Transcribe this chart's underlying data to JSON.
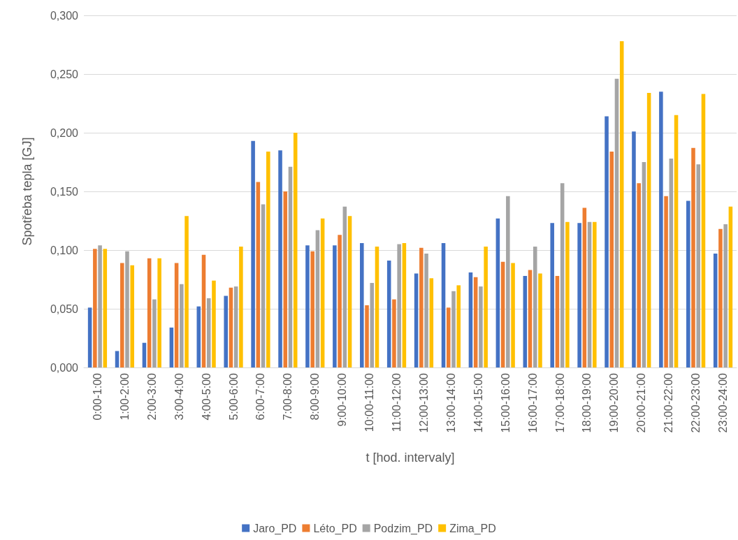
{
  "chart_data": {
    "type": "bar",
    "xlabel": "t [hod. intervaly]",
    "ylabel": "Spotřeba tepla [GJ]",
    "categories": [
      "0:00-1:00",
      "1:00-2:00",
      "2:00-3:00",
      "3:00-4:00",
      "4:00-5:00",
      "5:00-6:00",
      "6:00-7:00",
      "7:00-8:00",
      "8:00-9:00",
      "9:00-10:00",
      "10:00-11:00",
      "11:00-12:00",
      "12:00-13:00",
      "13:00-14:00",
      "14:00-15:00",
      "15:00-16:00",
      "16:00-17:00",
      "17:00-18:00",
      "18:00-19:00",
      "19:00-20:00",
      "20:00-21:00",
      "21:00-22:00",
      "22:00-23:00",
      "23:00-24:00"
    ],
    "series": [
      {
        "name": "Jaro_PD",
        "color": "#4472c4",
        "values": [
          0.051,
          0.014,
          0.021,
          0.034,
          0.052,
          0.061,
          0.193,
          0.185,
          0.104,
          0.104,
          0.106,
          0.091,
          0.08,
          0.106,
          0.081,
          0.127,
          0.078,
          0.123,
          0.123,
          0.214,
          0.201,
          0.235,
          0.142,
          0.097
        ]
      },
      {
        "name": "Léto_PD",
        "color": "#ed7d31",
        "values": [
          0.101,
          0.089,
          0.093,
          0.089,
          0.096,
          0.068,
          0.158,
          0.15,
          0.099,
          0.113,
          0.053,
          0.058,
          0.102,
          0.051,
          0.077,
          0.09,
          0.083,
          0.078,
          0.136,
          0.184,
          0.157,
          0.146,
          0.187,
          0.118
        ]
      },
      {
        "name": "Podzim_PD",
        "color": "#a5a5a5",
        "values": [
          0.104,
          0.099,
          0.058,
          0.071,
          0.059,
          0.069,
          0.139,
          0.171,
          0.117,
          0.137,
          0.072,
          0.105,
          0.097,
          0.065,
          0.069,
          0.146,
          0.103,
          0.157,
          0.124,
          0.246,
          0.175,
          0.178,
          0.173,
          0.122
        ]
      },
      {
        "name": "Zima_PD",
        "color": "#ffc000",
        "values": [
          0.101,
          0.087,
          0.093,
          0.129,
          0.074,
          0.103,
          0.184,
          0.2,
          0.127,
          0.129,
          0.103,
          0.106,
          0.076,
          0.07,
          0.103,
          0.089,
          0.08,
          0.124,
          0.124,
          0.278,
          0.234,
          0.215,
          0.233,
          0.137
        ]
      }
    ],
    "ylim": [
      0,
      0.3
    ],
    "yticks": [
      {
        "value": 0,
        "label": "0,000"
      },
      {
        "value": 0.05,
        "label": "0,050"
      },
      {
        "value": 0.1,
        "label": "0,100"
      },
      {
        "value": 0.15,
        "label": "0,150"
      },
      {
        "value": 0.2,
        "label": "0,200"
      },
      {
        "value": 0.25,
        "label": "0,250"
      },
      {
        "value": 0.3,
        "label": "0,300"
      }
    ],
    "grid": "y",
    "legend": "bottom"
  }
}
